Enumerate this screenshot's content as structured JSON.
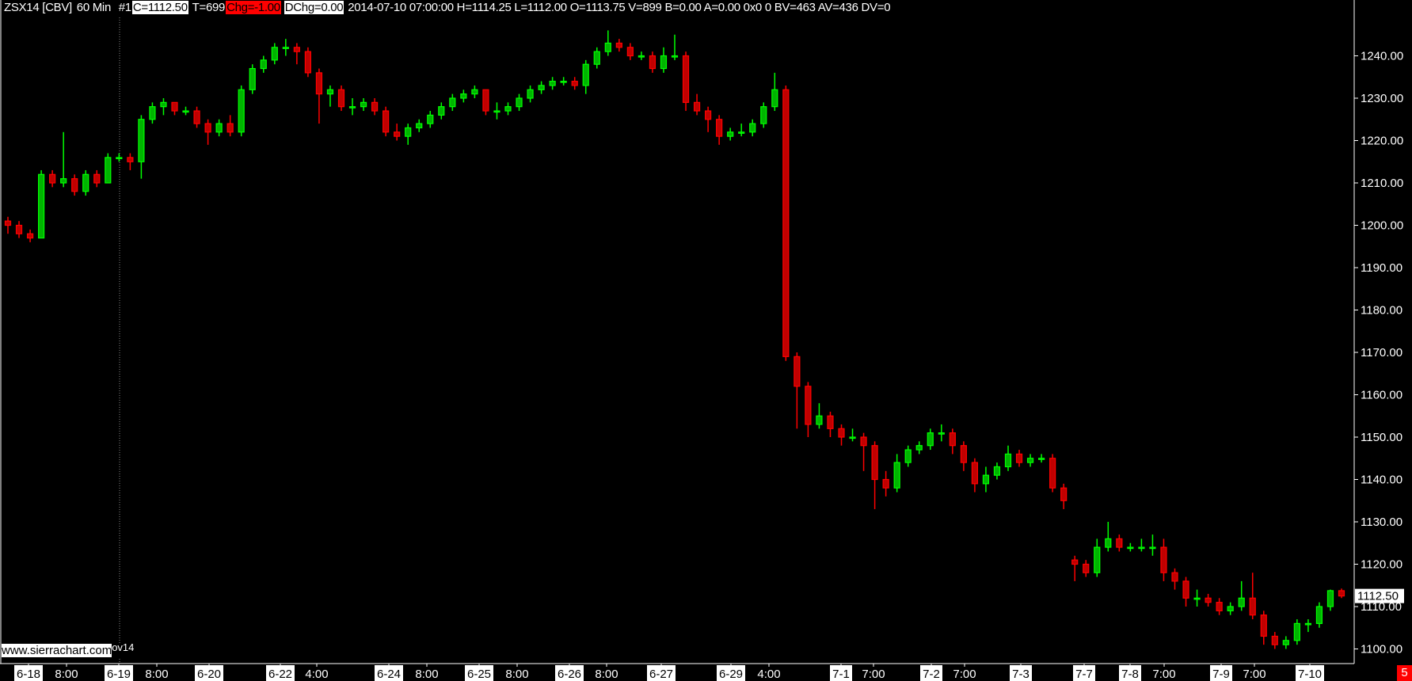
{
  "header": {
    "symbol": "ZSX14 [CBV]",
    "interval": "60 Min",
    "chart_number": "#1",
    "close": "C=1112.50",
    "trades": "T=699",
    "change": "Chg=-1.00",
    "daily_change": "DChg=0.00",
    "details": "2014-07-10 07:00:00 H=1114.25 L=1112.00 O=1113.75 V=899 B=0.00 A=0.00 0x0 0 BV=463 AV=436 DV=0"
  },
  "watermark": "www.sierrachart.com",
  "watermark_suffix": "ov14",
  "corner_badge": "5",
  "colors": {
    "up": "#00ff00",
    "up_fill": "#00b400",
    "down": "#ff0000",
    "down_fill": "#c00000",
    "background": "#000000",
    "axis": "#ffffff"
  },
  "chart_data": {
    "type": "candlestick",
    "title": "",
    "ylim": [
      1096,
      1250
    ],
    "y_ticks": [
      "1240.00",
      "1230.00",
      "1220.00",
      "1210.00",
      "1200.00",
      "1190.00",
      "1180.00",
      "1170.00",
      "1160.00",
      "1150.00",
      "1140.00",
      "1130.00",
      "1120.00",
      "1110.00",
      "1100.00"
    ],
    "last_price_label": "1112.50",
    "last_price": 1112.5,
    "x_tick_labels": [
      {
        "text": "6-18",
        "date": true
      },
      {
        "text": "8:00",
        "date": false
      },
      {
        "text": "6-19",
        "date": true
      },
      {
        "text": "8:00",
        "date": false
      },
      {
        "text": "6-20",
        "date": true
      },
      {
        "text": "6-22",
        "date": true
      },
      {
        "text": "4:00",
        "date": false
      },
      {
        "text": "6-24",
        "date": true
      },
      {
        "text": "8:00",
        "date": false
      },
      {
        "text": "6-25",
        "date": true
      },
      {
        "text": "8:00",
        "date": false
      },
      {
        "text": "6-26",
        "date": true
      },
      {
        "text": "8:00",
        "date": false
      },
      {
        "text": "6-27",
        "date": true
      },
      {
        "text": "6-29",
        "date": true
      },
      {
        "text": "4:00",
        "date": false
      },
      {
        "text": "7-1",
        "date": true
      },
      {
        "text": "7:00",
        "date": false
      },
      {
        "text": "7-2",
        "date": true
      },
      {
        "text": "7:00",
        "date": false
      },
      {
        "text": "7-3",
        "date": true
      },
      {
        "text": "7-7",
        "date": true
      },
      {
        "text": "7-8",
        "date": true
      },
      {
        "text": "7:00",
        "date": false
      },
      {
        "text": "7-9",
        "date": true
      },
      {
        "text": "7:00",
        "date": false
      },
      {
        "text": "7-10",
        "date": true
      }
    ],
    "ohlc": [
      [
        1201,
        1202,
        1198,
        1200
      ],
      [
        1200,
        1201,
        1197,
        1198
      ],
      [
        1198,
        1199,
        1196,
        1197
      ],
      [
        1197,
        1213,
        1197,
        1212
      ],
      [
        1212,
        1213,
        1209,
        1210
      ],
      [
        1210,
        1222,
        1209,
        1211
      ],
      [
        1211,
        1212,
        1207,
        1208
      ],
      [
        1208,
        1213,
        1207,
        1212
      ],
      [
        1212,
        1213,
        1209,
        1210
      ],
      [
        1210,
        1217,
        1210,
        1216
      ],
      [
        1216,
        1217,
        1215,
        1216
      ],
      [
        1216,
        1217,
        1213,
        1215
      ],
      [
        1215,
        1226,
        1211,
        1225
      ],
      [
        1225,
        1229,
        1224,
        1228
      ],
      [
        1228,
        1230,
        1226,
        1229
      ],
      [
        1229,
        1229,
        1226,
        1227
      ],
      [
        1227,
        1228,
        1226,
        1227
      ],
      [
        1227,
        1228,
        1223,
        1224
      ],
      [
        1224,
        1225,
        1219,
        1222
      ],
      [
        1222,
        1225,
        1221,
        1224
      ],
      [
        1224,
        1226,
        1221,
        1222
      ],
      [
        1222,
        1233,
        1221,
        1232
      ],
      [
        1232,
        1238,
        1231,
        1237
      ],
      [
        1237,
        1240,
        1236,
        1239
      ],
      [
        1239,
        1243,
        1238,
        1242
      ],
      [
        1242,
        1244,
        1240,
        1242
      ],
      [
        1242,
        1243,
        1238,
        1241
      ],
      [
        1241,
        1242,
        1235,
        1236
      ],
      [
        1236,
        1237,
        1224,
        1231
      ],
      [
        1231,
        1233,
        1228,
        1232
      ],
      [
        1232,
        1233,
        1227,
        1228
      ],
      [
        1228,
        1230,
        1226,
        1228
      ],
      [
        1228,
        1230,
        1227,
        1229
      ],
      [
        1229,
        1230,
        1226,
        1227
      ],
      [
        1227,
        1228,
        1221,
        1222
      ],
      [
        1222,
        1224,
        1220,
        1221
      ],
      [
        1221,
        1224,
        1219,
        1223
      ],
      [
        1223,
        1225,
        1222,
        1224
      ],
      [
        1224,
        1227,
        1223,
        1226
      ],
      [
        1226,
        1229,
        1225,
        1228
      ],
      [
        1228,
        1231,
        1227,
        1230
      ],
      [
        1230,
        1232,
        1229,
        1231
      ],
      [
        1231,
        1233,
        1230,
        1232
      ],
      [
        1232,
        1232,
        1226,
        1227
      ],
      [
        1227,
        1229,
        1225,
        1227
      ],
      [
        1227,
        1229,
        1226,
        1228
      ],
      [
        1228,
        1231,
        1227,
        1230
      ],
      [
        1230,
        1233,
        1229,
        1232
      ],
      [
        1232,
        1234,
        1231,
        1233
      ],
      [
        1233,
        1235,
        1232,
        1234
      ],
      [
        1234,
        1235,
        1233,
        1234
      ],
      [
        1234,
        1235,
        1232,
        1233
      ],
      [
        1233,
        1239,
        1231,
        1238
      ],
      [
        1238,
        1242,
        1237,
        1241
      ],
      [
        1241,
        1246,
        1240,
        1243
      ],
      [
        1243,
        1244,
        1241,
        1242
      ],
      [
        1242,
        1243,
        1239,
        1240
      ],
      [
        1240,
        1241,
        1239,
        1240
      ],
      [
        1240,
        1241,
        1236,
        1237
      ],
      [
        1237,
        1242,
        1236,
        1240
      ],
      [
        1240,
        1245,
        1239,
        1240
      ],
      [
        1240,
        1241,
        1227,
        1229
      ],
      [
        1229,
        1231,
        1226,
        1227
      ],
      [
        1227,
        1228,
        1222,
        1225
      ],
      [
        1225,
        1226,
        1219,
        1221
      ],
      [
        1221,
        1223,
        1220,
        1222
      ],
      [
        1222,
        1224,
        1221,
        1222
      ],
      [
        1222,
        1225,
        1221,
        1224
      ],
      [
        1224,
        1229,
        1223,
        1228
      ],
      [
        1228,
        1236,
        1227,
        1232
      ],
      [
        1232,
        1233,
        1168,
        1169
      ],
      [
        1169,
        1170,
        1152,
        1162
      ],
      [
        1162,
        1163,
        1150,
        1153
      ],
      [
        1153,
        1158,
        1152,
        1155
      ],
      [
        1155,
        1156,
        1150,
        1152
      ],
      [
        1152,
        1153,
        1148,
        1150
      ],
      [
        1150,
        1152,
        1149,
        1150
      ],
      [
        1150,
        1151,
        1142,
        1148
      ],
      [
        1148,
        1149,
        1133,
        1140
      ],
      [
        1140,
        1142,
        1136,
        1138
      ],
      [
        1138,
        1146,
        1137,
        1144
      ],
      [
        1144,
        1148,
        1143,
        1147
      ],
      [
        1147,
        1149,
        1146,
        1148
      ],
      [
        1148,
        1152,
        1147,
        1151
      ],
      [
        1151,
        1153,
        1149,
        1151
      ],
      [
        1151,
        1152,
        1146,
        1148
      ],
      [
        1148,
        1149,
        1142,
        1144
      ],
      [
        1144,
        1145,
        1137,
        1139
      ],
      [
        1139,
        1143,
        1137,
        1141
      ],
      [
        1141,
        1144,
        1140,
        1143
      ],
      [
        1143,
        1148,
        1142,
        1146
      ],
      [
        1146,
        1147,
        1143,
        1144
      ],
      [
        1144,
        1146,
        1143,
        1145
      ],
      [
        1145,
        1146,
        1144,
        1145
      ],
      [
        1145,
        1146,
        1137,
        1138
      ],
      [
        1138,
        1139,
        1133,
        1135
      ],
      [
        1121,
        1122,
        1116,
        1120
      ],
      [
        1120,
        1121,
        1117,
        1118
      ],
      [
        1118,
        1126,
        1117,
        1124
      ],
      [
        1124,
        1130,
        1123,
        1126
      ],
      [
        1126,
        1127,
        1123,
        1124
      ],
      [
        1124,
        1125,
        1123,
        1124
      ],
      [
        1124,
        1126,
        1123,
        1124
      ],
      [
        1124,
        1127,
        1122,
        1124
      ],
      [
        1124,
        1126,
        1116,
        1118
      ],
      [
        1118,
        1119,
        1114,
        1116
      ],
      [
        1116,
        1117,
        1110,
        1112
      ],
      [
        1112,
        1114,
        1110,
        1112
      ],
      [
        1112,
        1113,
        1110,
        1111
      ],
      [
        1111,
        1112,
        1108,
        1109
      ],
      [
        1109,
        1111,
        1108,
        1110
      ],
      [
        1110,
        1116,
        1109,
        1112
      ],
      [
        1112,
        1118,
        1107,
        1108
      ],
      [
        1108,
        1109,
        1101,
        1103
      ],
      [
        1103,
        1104,
        1100,
        1101
      ],
      [
        1101,
        1103,
        1100,
        1102
      ],
      [
        1102,
        1107,
        1101,
        1106
      ],
      [
        1106,
        1107,
        1104,
        1106
      ],
      [
        1106,
        1111,
        1105,
        1110
      ],
      [
        1110,
        1114,
        1109,
        1113.75
      ],
      [
        1113.75,
        1114.25,
        1112,
        1112.5
      ]
    ]
  }
}
